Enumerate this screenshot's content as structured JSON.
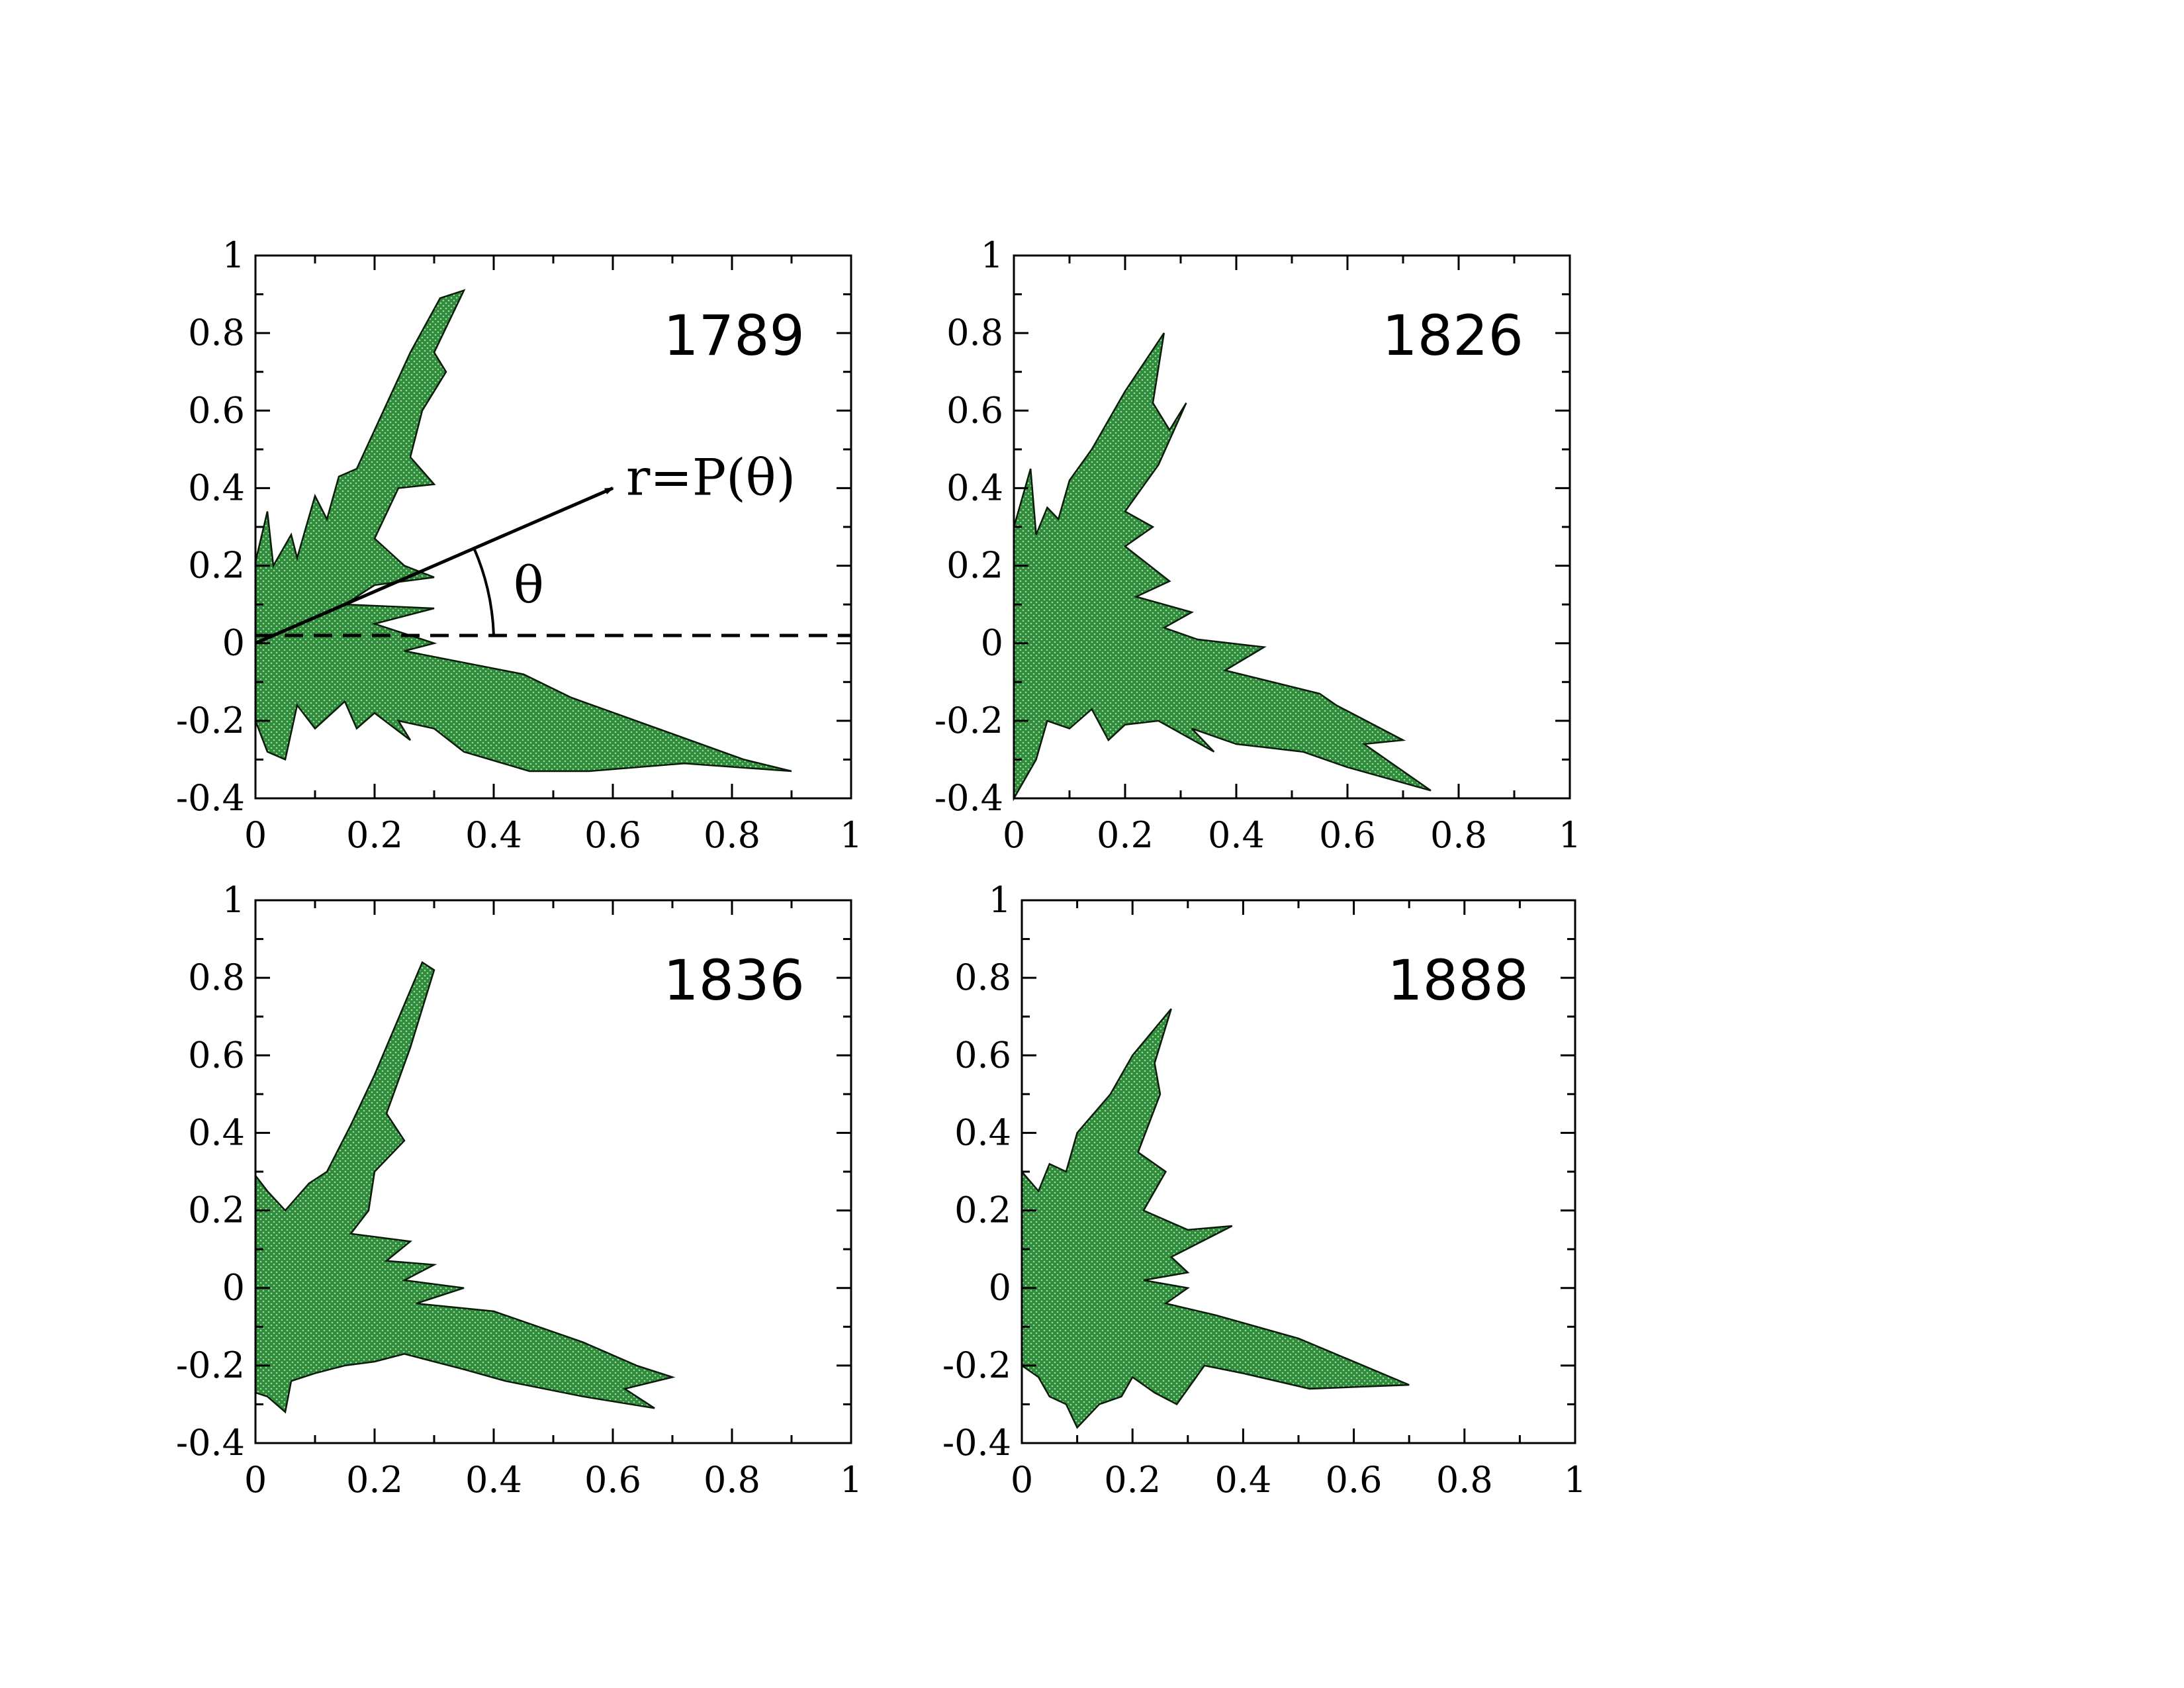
{
  "figure": {
    "fill_color": "#2e8b3a",
    "dot_color": "#9fd49f"
  },
  "chart_data": [
    {
      "type": "area",
      "polar": true,
      "title": "1789",
      "xlim": [
        0,
        1
      ],
      "ylim": [
        -0.4,
        1
      ],
      "xticks": [
        "0",
        "0.2",
        "0.4",
        "0.6",
        "0.8",
        "1"
      ],
      "yticks": [
        "-0.4",
        "-0.2",
        "0",
        "0.2",
        "0.4",
        "0.6",
        "0.8",
        "1"
      ],
      "grid": false,
      "outline": [
        [
          0,
          0
        ],
        [
          0,
          0.21
        ],
        [
          0.02,
          0.34
        ],
        [
          0.03,
          0.2
        ],
        [
          0.06,
          0.28
        ],
        [
          0.07,
          0.22
        ],
        [
          0.1,
          0.38
        ],
        [
          0.12,
          0.32
        ],
        [
          0.14,
          0.43
        ],
        [
          0.17,
          0.45
        ],
        [
          0.2,
          0.55
        ],
        [
          0.26,
          0.75
        ],
        [
          0.31,
          0.89
        ],
        [
          0.35,
          0.91
        ],
        [
          0.3,
          0.75
        ],
        [
          0.32,
          0.7
        ],
        [
          0.28,
          0.6
        ],
        [
          0.26,
          0.48
        ],
        [
          0.3,
          0.41
        ],
        [
          0.24,
          0.4
        ],
        [
          0.2,
          0.27
        ],
        [
          0.25,
          0.2
        ],
        [
          0.3,
          0.17
        ],
        [
          0.2,
          0.15
        ],
        [
          0.15,
          0.1
        ],
        [
          0.3,
          0.09
        ],
        [
          0.2,
          0.05
        ],
        [
          0.3,
          0.0
        ],
        [
          0.25,
          -0.02
        ],
        [
          0.45,
          -0.08
        ],
        [
          0.53,
          -0.14
        ],
        [
          0.82,
          -0.3
        ],
        [
          0.9,
          -0.33
        ],
        [
          0.72,
          -0.31
        ],
        [
          0.56,
          -0.33
        ],
        [
          0.46,
          -0.33
        ],
        [
          0.35,
          -0.28
        ],
        [
          0.3,
          -0.22
        ],
        [
          0.24,
          -0.2
        ],
        [
          0.26,
          -0.25
        ],
        [
          0.2,
          -0.18
        ],
        [
          0.17,
          -0.22
        ],
        [
          0.15,
          -0.15
        ],
        [
          0.1,
          -0.22
        ],
        [
          0.07,
          -0.16
        ],
        [
          0.05,
          -0.3
        ],
        [
          0.02,
          -0.28
        ],
        [
          0.0,
          -0.2
        ]
      ],
      "annotation": {
        "label": "r=P(θ)",
        "angle_label": "θ",
        "arrow_tip": [
          0.6,
          0.4
        ],
        "reference_line_y": 0.02
      }
    },
    {
      "type": "area",
      "polar": true,
      "title": "1826",
      "xlim": [
        0,
        1
      ],
      "ylim": [
        -0.4,
        1
      ],
      "xticks": [
        "0",
        "0.2",
        "0.4",
        "0.6",
        "0.8",
        "1"
      ],
      "yticks": [
        "-0.4",
        "-0.2",
        "0",
        "0.2",
        "0.4",
        "0.6",
        "0.8",
        "1"
      ],
      "grid": false,
      "outline": [
        [
          0,
          0
        ],
        [
          0,
          0.3
        ],
        [
          0.03,
          0.45
        ],
        [
          0.04,
          0.28
        ],
        [
          0.06,
          0.35
        ],
        [
          0.08,
          0.32
        ],
        [
          0.1,
          0.42
        ],
        [
          0.14,
          0.5
        ],
        [
          0.2,
          0.65
        ],
        [
          0.27,
          0.8
        ],
        [
          0.25,
          0.62
        ],
        [
          0.28,
          0.55
        ],
        [
          0.31,
          0.62
        ],
        [
          0.26,
          0.46
        ],
        [
          0.2,
          0.34
        ],
        [
          0.25,
          0.3
        ],
        [
          0.2,
          0.25
        ],
        [
          0.28,
          0.16
        ],
        [
          0.22,
          0.12
        ],
        [
          0.32,
          0.08
        ],
        [
          0.27,
          0.04
        ],
        [
          0.33,
          0.01
        ],
        [
          0.45,
          -0.01
        ],
        [
          0.38,
          -0.07
        ],
        [
          0.55,
          -0.13
        ],
        [
          0.58,
          -0.16
        ],
        [
          0.7,
          -0.25
        ],
        [
          0.63,
          -0.26
        ],
        [
          0.75,
          -0.38
        ],
        [
          0.6,
          -0.32
        ],
        [
          0.52,
          -0.28
        ],
        [
          0.4,
          -0.26
        ],
        [
          0.32,
          -0.22
        ],
        [
          0.36,
          -0.28
        ],
        [
          0.26,
          -0.2
        ],
        [
          0.2,
          -0.21
        ],
        [
          0.17,
          -0.25
        ],
        [
          0.14,
          -0.17
        ],
        [
          0.1,
          -0.22
        ],
        [
          0.06,
          -0.2
        ],
        [
          0.04,
          -0.3
        ],
        [
          0.02,
          -0.35
        ],
        [
          0,
          -0.4
        ]
      ]
    },
    {
      "type": "area",
      "polar": true,
      "title": "1836",
      "xlim": [
        0,
        1
      ],
      "ylim": [
        -0.4,
        1
      ],
      "xticks": [
        "0",
        "0.2",
        "0.4",
        "0.6",
        "0.8",
        "1"
      ],
      "yticks": [
        "-0.4",
        "-0.2",
        "0",
        "0.2",
        "0.4",
        "0.6",
        "0.8",
        "1"
      ],
      "grid": false,
      "outline": [
        [
          0,
          0
        ],
        [
          0,
          0.29
        ],
        [
          0.02,
          0.25
        ],
        [
          0.05,
          0.2
        ],
        [
          0.09,
          0.27
        ],
        [
          0.12,
          0.3
        ],
        [
          0.16,
          0.42
        ],
        [
          0.2,
          0.55
        ],
        [
          0.28,
          0.84
        ],
        [
          0.3,
          0.82
        ],
        [
          0.26,
          0.62
        ],
        [
          0.22,
          0.45
        ],
        [
          0.25,
          0.38
        ],
        [
          0.2,
          0.3
        ],
        [
          0.19,
          0.2
        ],
        [
          0.16,
          0.14
        ],
        [
          0.26,
          0.12
        ],
        [
          0.22,
          0.07
        ],
        [
          0.3,
          0.06
        ],
        [
          0.25,
          0.02
        ],
        [
          0.35,
          0.0
        ],
        [
          0.27,
          -0.04
        ],
        [
          0.4,
          -0.06
        ],
        [
          0.55,
          -0.14
        ],
        [
          0.64,
          -0.2
        ],
        [
          0.7,
          -0.23
        ],
        [
          0.62,
          -0.26
        ],
        [
          0.67,
          -0.31
        ],
        [
          0.55,
          -0.28
        ],
        [
          0.42,
          -0.24
        ],
        [
          0.35,
          -0.21
        ],
        [
          0.25,
          -0.17
        ],
        [
          0.2,
          -0.19
        ],
        [
          0.15,
          -0.2
        ],
        [
          0.1,
          -0.22
        ],
        [
          0.06,
          -0.24
        ],
        [
          0.05,
          -0.32
        ],
        [
          0.02,
          -0.28
        ],
        [
          0,
          -0.27
        ]
      ]
    },
    {
      "type": "area",
      "polar": true,
      "title": "1888",
      "xlim": [
        0,
        1
      ],
      "ylim": [
        -0.4,
        1
      ],
      "xticks": [
        "0",
        "0.2",
        "0.4",
        "0.6",
        "0.8",
        "1"
      ],
      "yticks": [
        "-0.4",
        "-0.2",
        "0",
        "0.2",
        "0.4",
        "0.6",
        "0.8",
        "1"
      ],
      "grid": false,
      "outline": [
        [
          0,
          0
        ],
        [
          0,
          0.3
        ],
        [
          0.03,
          0.25
        ],
        [
          0.05,
          0.32
        ],
        [
          0.08,
          0.3
        ],
        [
          0.1,
          0.4
        ],
        [
          0.16,
          0.5
        ],
        [
          0.2,
          0.6
        ],
        [
          0.27,
          0.72
        ],
        [
          0.24,
          0.58
        ],
        [
          0.25,
          0.5
        ],
        [
          0.21,
          0.35
        ],
        [
          0.26,
          0.3
        ],
        [
          0.22,
          0.2
        ],
        [
          0.3,
          0.15
        ],
        [
          0.38,
          0.16
        ],
        [
          0.27,
          0.08
        ],
        [
          0.3,
          0.04
        ],
        [
          0.22,
          0.02
        ],
        [
          0.3,
          0.0
        ],
        [
          0.26,
          -0.04
        ],
        [
          0.35,
          -0.07
        ],
        [
          0.5,
          -0.13
        ],
        [
          0.7,
          -0.25
        ],
        [
          0.52,
          -0.26
        ],
        [
          0.4,
          -0.22
        ],
        [
          0.33,
          -0.2
        ],
        [
          0.28,
          -0.3
        ],
        [
          0.24,
          -0.27
        ],
        [
          0.2,
          -0.23
        ],
        [
          0.18,
          -0.28
        ],
        [
          0.14,
          -0.3
        ],
        [
          0.1,
          -0.36
        ],
        [
          0.08,
          -0.3
        ],
        [
          0.05,
          -0.28
        ],
        [
          0.03,
          -0.23
        ],
        [
          0,
          -0.2
        ]
      ]
    }
  ]
}
